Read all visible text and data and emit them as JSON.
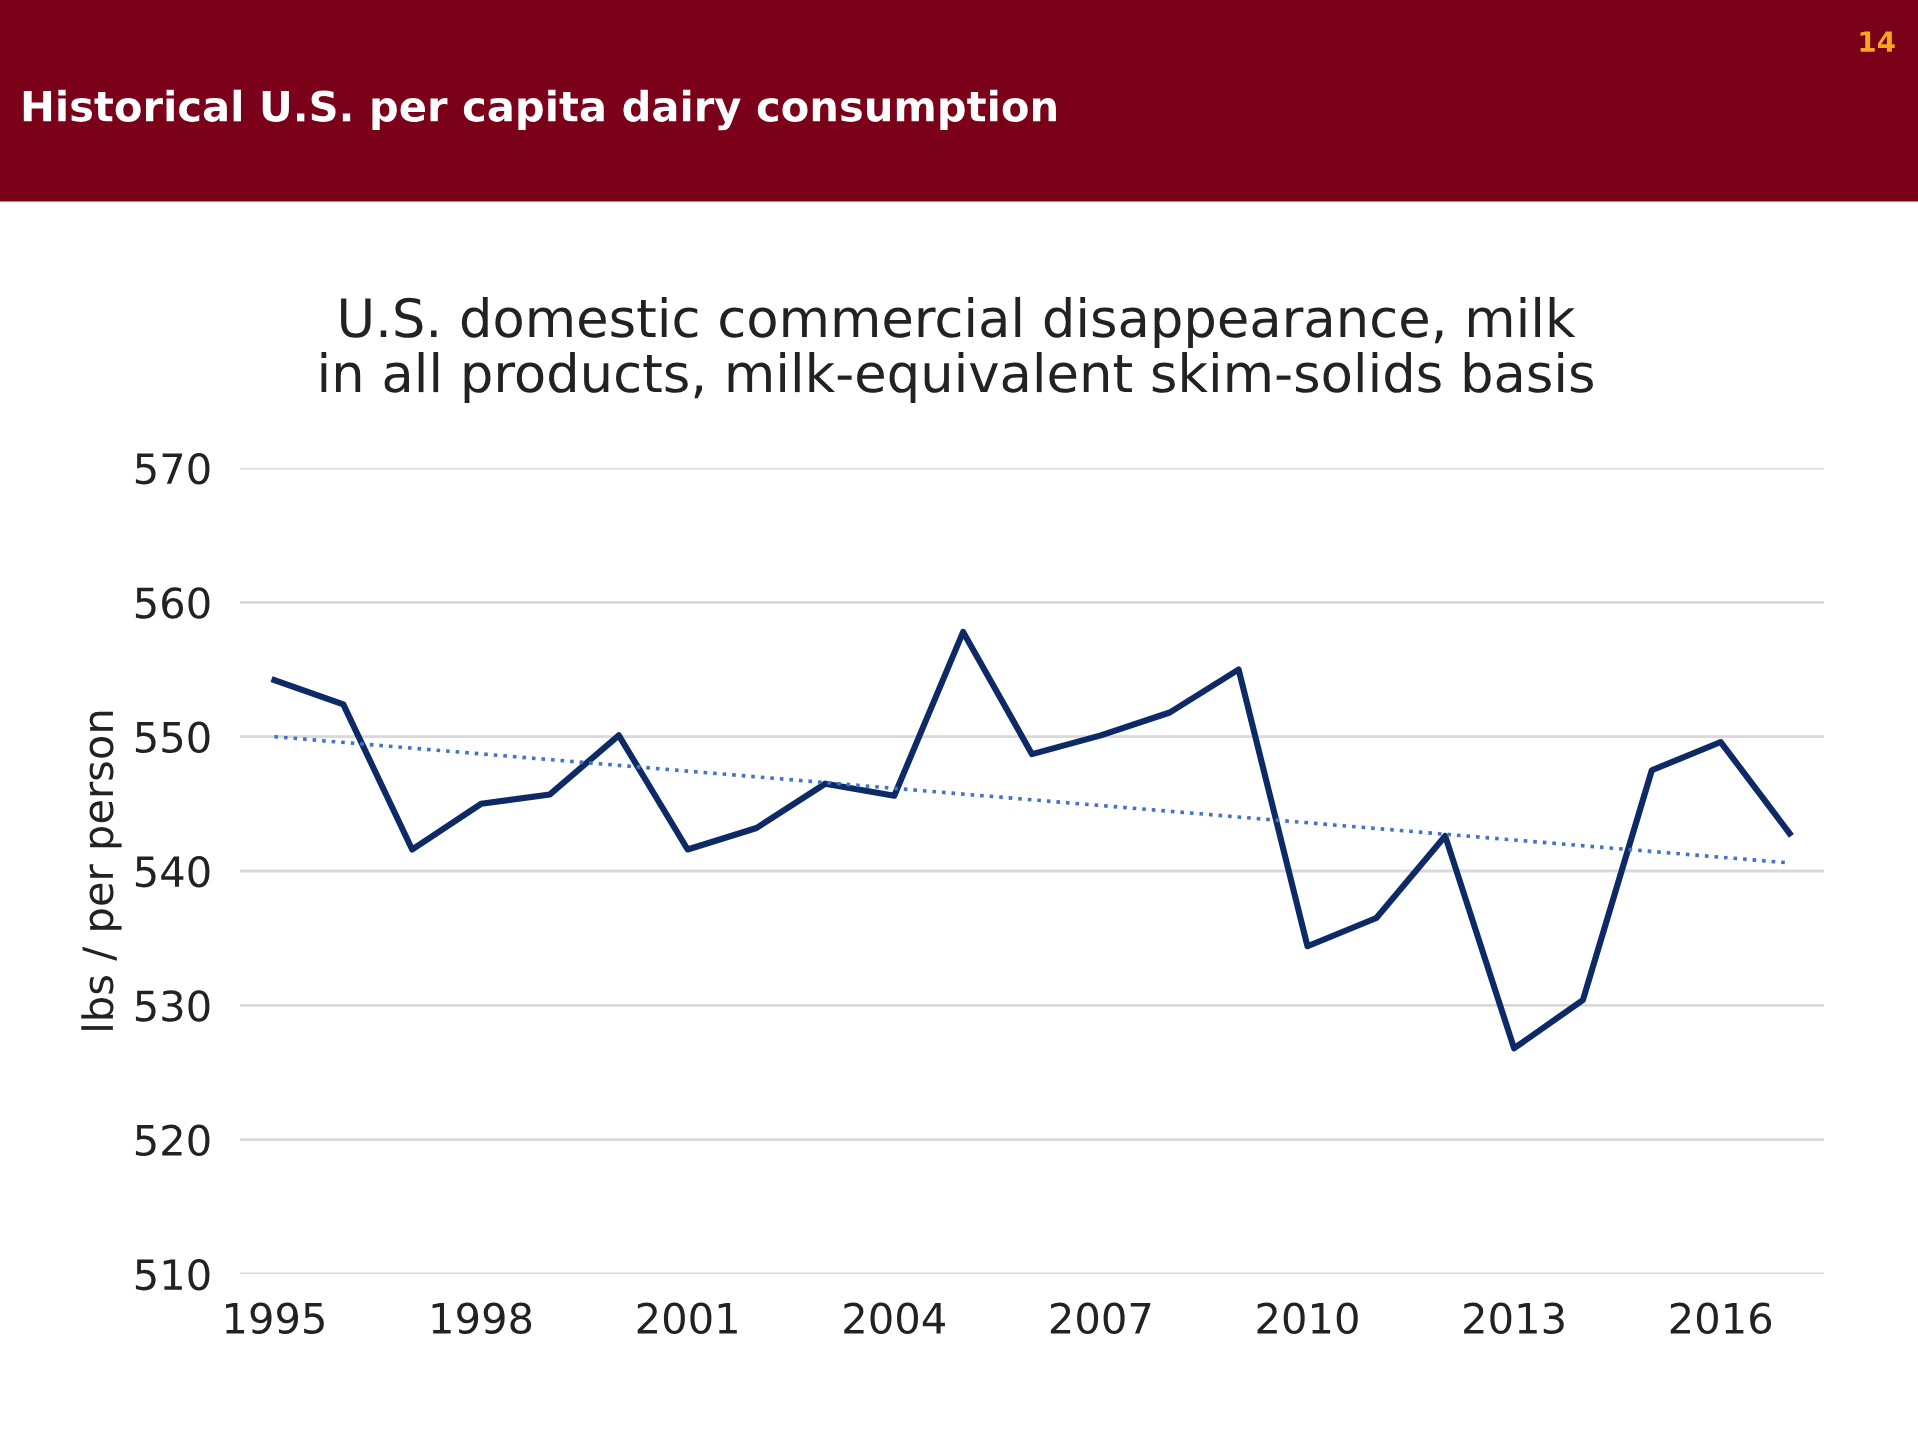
{
  "chart_data": {
    "type": "line",
    "title": "Historical U.S. per capita dairy consumption",
    "subtitle": "U.S. domestic commercial disappearance, milk\nin all products, milk-equivalent skim-solids basis",
    "ylabel": "lbs / per person",
    "annotations": [
      "14"
    ],
    "x": [
      1995,
      1996,
      1997,
      1998,
      1999,
      2000,
      2001,
      2002,
      2003,
      2004,
      2005,
      2006,
      2007,
      2008,
      2009,
      2010,
      2011,
      2012,
      2013,
      2014,
      2015,
      2016,
      2017
    ],
    "series": [
      {
        "color": "#0e2a66",
        "line_style": "solid",
        "values": [
          554.2,
          552.4,
          541.6,
          545.0,
          545.7,
          550.1,
          541.6,
          543.2,
          546.5,
          545.6,
          557.8,
          548.7,
          550.1,
          551.8,
          555.0,
          534.4,
          536.5,
          542.6,
          526.8,
          530.4,
          547.5,
          549.6,
          542.8
        ]
      },
      {
        "color": "#4472c4",
        "line_style": "dotted",
        "x": [
          1995,
          2017
        ],
        "values": [
          550.0,
          540.6
        ]
      }
    ],
    "xlim": [
      1994.5,
      2017.5
    ],
    "xticks": [
      1995,
      1998,
      2001,
      2004,
      2007,
      2010,
      2013,
      2016
    ],
    "ylim": [
      510,
      570
    ],
    "yticks": [
      510,
      520,
      530,
      540,
      550,
      560,
      570
    ],
    "grid": "y",
    "legend": false,
    "marker": "none"
  }
}
